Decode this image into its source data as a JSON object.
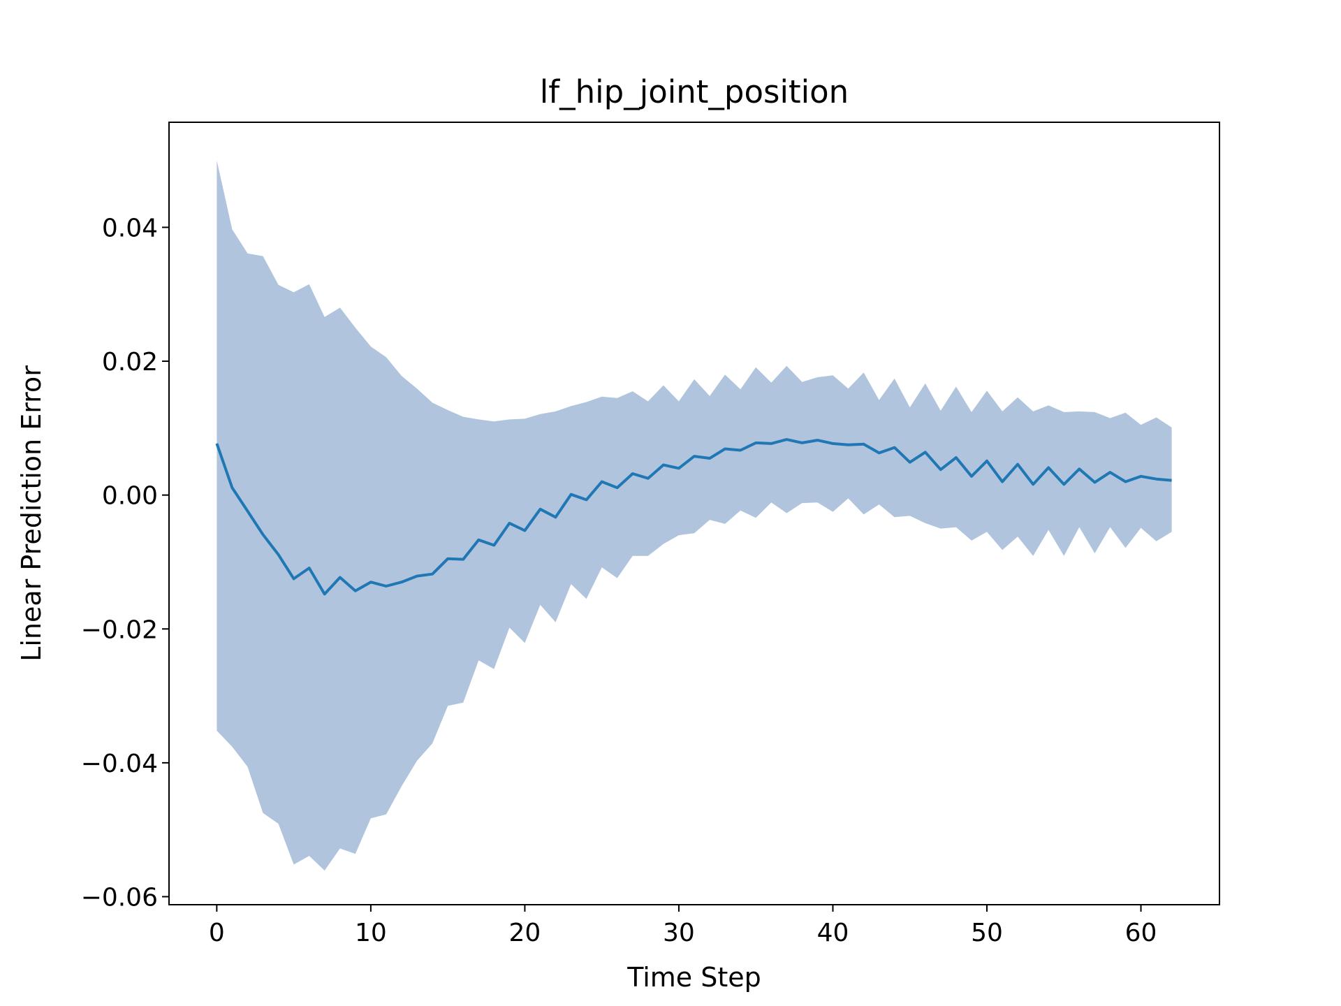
{
  "chart_data": {
    "type": "line",
    "title": "lf_hip_joint_position",
    "xlabel": "Time Step",
    "ylabel": "Linear Prediction Error",
    "xlim": [
      -3.1,
      65.1
    ],
    "ylim": [
      -0.0612,
      0.0557
    ],
    "xticks": [
      0,
      10,
      20,
      30,
      40,
      50,
      60
    ],
    "yticks": [
      -0.06,
      -0.04,
      -0.02,
      0.0,
      0.02,
      0.04
    ],
    "xtick_labels": [
      "0",
      "10",
      "20",
      "30",
      "40",
      "50",
      "60"
    ],
    "ytick_labels": [
      "−0.06",
      "−0.04",
      "−0.02",
      "0.00",
      "0.02",
      "0.04"
    ],
    "grid": false,
    "colors": {
      "line": "#1f77b4",
      "band": "#b0c4de"
    },
    "x": [
      0,
      1,
      2,
      3,
      4,
      5,
      6,
      7,
      8,
      9,
      10,
      11,
      12,
      13,
      14,
      15,
      16,
      17,
      18,
      19,
      20,
      21,
      22,
      23,
      24,
      25,
      26,
      27,
      28,
      29,
      30,
      31,
      32,
      33,
      34,
      35,
      36,
      37,
      38,
      39,
      40,
      41,
      42,
      43,
      44,
      45,
      46,
      47,
      48,
      49,
      50,
      51,
      52,
      53,
      54,
      55,
      56,
      57,
      58,
      59,
      60,
      61,
      62
    ],
    "series": [
      {
        "values": [
          0.0077,
          0.0011,
          -0.0024,
          -0.0059,
          -0.0089,
          -0.0125,
          -0.0109,
          -0.0148,
          -0.0123,
          -0.0143,
          -0.013,
          -0.0136,
          -0.013,
          -0.0121,
          -0.0118,
          -0.0095,
          -0.0096,
          -0.0067,
          -0.0075,
          -0.0042,
          -0.0053,
          -0.0021,
          -0.0033,
          0.0001,
          -0.0007,
          0.002,
          0.0011,
          0.0032,
          0.0025,
          0.0045,
          0.004,
          0.0058,
          0.0055,
          0.0069,
          0.0067,
          0.0078,
          0.0077,
          0.0083,
          0.0078,
          0.0082,
          0.0077,
          0.0075,
          0.0076,
          0.0063,
          0.0071,
          0.0049,
          0.0064,
          0.0038,
          0.0056,
          0.0028,
          0.0051,
          0.002,
          0.0046,
          0.0016,
          0.0041,
          0.0016,
          0.0039,
          0.0019,
          0.0034,
          0.002,
          0.0028,
          0.0024,
          0.0022
        ],
        "upper": [
          0.05,
          0.0397,
          0.0361,
          0.0357,
          0.0314,
          0.0303,
          0.0315,
          0.0266,
          0.028,
          0.025,
          0.0222,
          0.0206,
          0.0178,
          0.0159,
          0.0138,
          0.0127,
          0.0117,
          0.0113,
          0.011,
          0.0113,
          0.0114,
          0.0121,
          0.0125,
          0.0133,
          0.0139,
          0.0147,
          0.0145,
          0.0155,
          0.014,
          0.0164,
          0.014,
          0.0173,
          0.0148,
          0.018,
          0.0158,
          0.0191,
          0.0168,
          0.0193,
          0.0169,
          0.0176,
          0.0179,
          0.0159,
          0.0183,
          0.0142,
          0.0174,
          0.0131,
          0.0167,
          0.0126,
          0.0162,
          0.0124,
          0.0156,
          0.0125,
          0.0146,
          0.0125,
          0.0134,
          0.0124,
          0.0125,
          0.0124,
          0.0115,
          0.0123,
          0.0105,
          0.0116,
          0.0101
        ],
        "lower": [
          -0.0352,
          -0.0376,
          -0.0406,
          -0.0475,
          -0.0491,
          -0.0552,
          -0.0539,
          -0.0561,
          -0.0528,
          -0.0536,
          -0.0483,
          -0.0477,
          -0.0435,
          -0.0397,
          -0.0371,
          -0.0315,
          -0.031,
          -0.0247,
          -0.026,
          -0.0198,
          -0.0221,
          -0.0164,
          -0.019,
          -0.0133,
          -0.0155,
          -0.0108,
          -0.0124,
          -0.0091,
          -0.0091,
          -0.0073,
          -0.006,
          -0.0057,
          -0.0037,
          -0.0043,
          -0.0023,
          -0.0034,
          -0.0011,
          -0.0027,
          -0.0012,
          -0.0011,
          -0.0025,
          -0.0005,
          -0.0029,
          -0.0014,
          -0.0033,
          -0.0031,
          -0.0042,
          -0.005,
          -0.0048,
          -0.0068,
          -0.0055,
          -0.0082,
          -0.0062,
          -0.0091,
          -0.0052,
          -0.0091,
          -0.0048,
          -0.0087,
          -0.0048,
          -0.0079,
          -0.0049,
          -0.0069,
          -0.0055
        ]
      }
    ]
  }
}
